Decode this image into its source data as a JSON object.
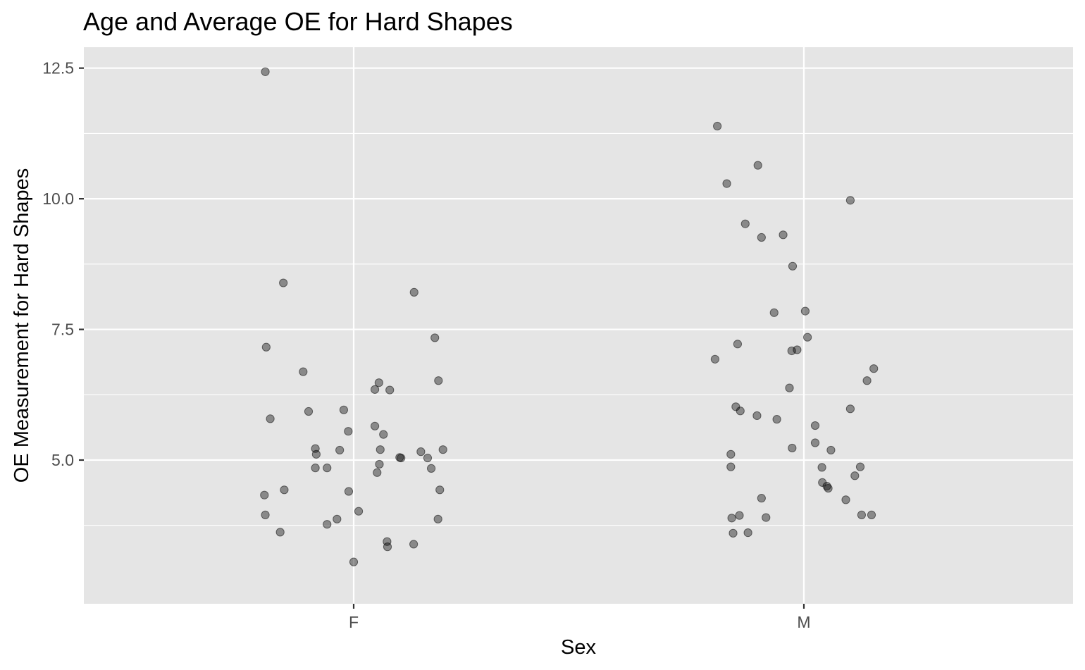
{
  "chart_data": {
    "type": "scatter",
    "title": "Age and Average OE for Hard Shapes",
    "xlabel": "Sex",
    "ylabel": "OE Measurement for Hard Shapes",
    "x_type": "categorical-jitter",
    "categories": [
      "F",
      "M"
    ],
    "ylim": [
      2.25,
      12.9
    ],
    "yticks": [
      5.0,
      7.5,
      10.0,
      12.5
    ],
    "ytick_labels": [
      "5.0",
      "7.5",
      "10.0",
      "12.5"
    ],
    "grid": true,
    "legend": "none",
    "colors": {
      "panel_background": "#e5e5e5",
      "grid": "#ffffff",
      "point_fill": "#000000",
      "point_alpha": 0.4
    },
    "series": [
      {
        "category": "F",
        "points": [
          {
            "jitter": -0.196,
            "y": 12.43
          },
          {
            "jitter": -0.156,
            "y": 8.39
          },
          {
            "jitter": 0.134,
            "y": 8.21
          },
          {
            "jitter": 0.18,
            "y": 7.34
          },
          {
            "jitter": -0.194,
            "y": 7.16
          },
          {
            "jitter": -0.112,
            "y": 6.69
          },
          {
            "jitter": 0.056,
            "y": 6.48
          },
          {
            "jitter": 0.047,
            "y": 6.35
          },
          {
            "jitter": 0.08,
            "y": 6.34
          },
          {
            "jitter": 0.188,
            "y": 6.52
          },
          {
            "jitter": -0.022,
            "y": 5.96
          },
          {
            "jitter": -0.1,
            "y": 5.93
          },
          {
            "jitter": -0.185,
            "y": 5.79
          },
          {
            "jitter": -0.012,
            "y": 5.55
          },
          {
            "jitter": 0.047,
            "y": 5.65
          },
          {
            "jitter": 0.066,
            "y": 5.49
          },
          {
            "jitter": -0.085,
            "y": 5.22
          },
          {
            "jitter": -0.031,
            "y": 5.19
          },
          {
            "jitter": 0.059,
            "y": 5.2
          },
          {
            "jitter": 0.149,
            "y": 5.16
          },
          {
            "jitter": 0.198,
            "y": 5.2
          },
          {
            "jitter": -0.083,
            "y": 5.11
          },
          {
            "jitter": 0.102,
            "y": 5.05
          },
          {
            "jitter": 0.105,
            "y": 5.04
          },
          {
            "jitter": 0.164,
            "y": 5.04
          },
          {
            "jitter": -0.085,
            "y": 4.85
          },
          {
            "jitter": -0.059,
            "y": 4.85
          },
          {
            "jitter": 0.057,
            "y": 4.92
          },
          {
            "jitter": 0.172,
            "y": 4.84
          },
          {
            "jitter": 0.052,
            "y": 4.76
          },
          {
            "jitter": -0.198,
            "y": 4.33
          },
          {
            "jitter": -0.154,
            "y": 4.43
          },
          {
            "jitter": -0.011,
            "y": 4.4
          },
          {
            "jitter": 0.191,
            "y": 4.43
          },
          {
            "jitter": -0.196,
            "y": 3.95
          },
          {
            "jitter": 0.011,
            "y": 4.02
          },
          {
            "jitter": -0.037,
            "y": 3.87
          },
          {
            "jitter": -0.059,
            "y": 3.77
          },
          {
            "jitter": 0.187,
            "y": 3.87
          },
          {
            "jitter": -0.163,
            "y": 3.62
          },
          {
            "jitter": 0.074,
            "y": 3.44
          },
          {
            "jitter": 0.075,
            "y": 3.34
          },
          {
            "jitter": 0.133,
            "y": 3.39
          },
          {
            "jitter": 0.0,
            "y": 3.05
          }
        ]
      },
      {
        "category": "M",
        "points": [
          {
            "jitter": -0.192,
            "y": 11.39
          },
          {
            "jitter": -0.102,
            "y": 10.64
          },
          {
            "jitter": -0.171,
            "y": 10.29
          },
          {
            "jitter": 0.103,
            "y": 9.97
          },
          {
            "jitter": -0.13,
            "y": 9.52
          },
          {
            "jitter": -0.046,
            "y": 9.31
          },
          {
            "jitter": -0.094,
            "y": 9.26
          },
          {
            "jitter": -0.025,
            "y": 8.71
          },
          {
            "jitter": -0.066,
            "y": 7.82
          },
          {
            "jitter": 0.003,
            "y": 7.85
          },
          {
            "jitter": 0.008,
            "y": 7.35
          },
          {
            "jitter": -0.147,
            "y": 7.22
          },
          {
            "jitter": -0.197,
            "y": 6.93
          },
          {
            "jitter": -0.027,
            "y": 7.09
          },
          {
            "jitter": -0.015,
            "y": 7.11
          },
          {
            "jitter": 0.155,
            "y": 6.75
          },
          {
            "jitter": 0.14,
            "y": 6.52
          },
          {
            "jitter": -0.032,
            "y": 6.38
          },
          {
            "jitter": -0.151,
            "y": 6.02
          },
          {
            "jitter": -0.141,
            "y": 5.94
          },
          {
            "jitter": 0.103,
            "y": 5.98
          },
          {
            "jitter": -0.104,
            "y": 5.85
          },
          {
            "jitter": -0.06,
            "y": 5.78
          },
          {
            "jitter": 0.025,
            "y": 5.66
          },
          {
            "jitter": 0.025,
            "y": 5.33
          },
          {
            "jitter": -0.026,
            "y": 5.23
          },
          {
            "jitter": 0.06,
            "y": 5.19
          },
          {
            "jitter": -0.162,
            "y": 5.11
          },
          {
            "jitter": -0.162,
            "y": 4.87
          },
          {
            "jitter": 0.04,
            "y": 4.86
          },
          {
            "jitter": 0.125,
            "y": 4.87
          },
          {
            "jitter": 0.113,
            "y": 4.7
          },
          {
            "jitter": 0.041,
            "y": 4.57
          },
          {
            "jitter": 0.051,
            "y": 4.5
          },
          {
            "jitter": 0.054,
            "y": 4.46
          },
          {
            "jitter": -0.094,
            "y": 4.27
          },
          {
            "jitter": 0.093,
            "y": 4.24
          },
          {
            "jitter": -0.143,
            "y": 3.94
          },
          {
            "jitter": -0.16,
            "y": 3.89
          },
          {
            "jitter": -0.084,
            "y": 3.9
          },
          {
            "jitter": 0.128,
            "y": 3.95
          },
          {
            "jitter": 0.15,
            "y": 3.95
          },
          {
            "jitter": -0.157,
            "y": 3.6
          },
          {
            "jitter": -0.124,
            "y": 3.61
          }
        ]
      }
    ]
  }
}
